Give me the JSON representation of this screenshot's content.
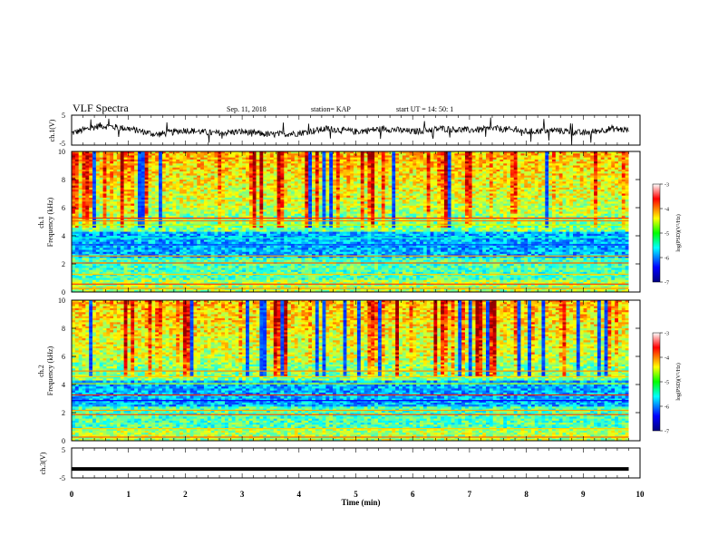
{
  "header": {
    "title": "VLF Spectra",
    "date": "Sep. 11, 2018",
    "station": "station= KAP",
    "start": "start  UT =   14: 50: 1"
  },
  "chart_data": [
    {
      "type": "line",
      "panel": "ch1-waveform",
      "ylabel": "ch.1(V)",
      "ylim": [
        -5,
        5
      ],
      "yticks": [
        "5",
        "-5"
      ],
      "xlim": [
        0,
        10
      ],
      "description_of_series": "noisy waveform roughly between -3 and 3 V",
      "x": [
        0,
        0.5,
        1,
        1.5,
        2,
        2.5,
        3,
        3.5,
        4,
        4.5,
        5,
        5.5,
        6,
        6.5,
        7,
        7.5,
        8,
        8.5,
        9,
        9.5,
        9.8
      ],
      "y": [
        -1,
        1.5,
        0.5,
        -1.5,
        0,
        -1,
        -0.5,
        -1.5,
        -1,
        0.5,
        -0.5,
        0.5,
        -0.5,
        0.5,
        0,
        0.5,
        -0.5,
        0,
        -1,
        0.5,
        0
      ]
    },
    {
      "type": "heatmap",
      "panel": "ch1-spectrogram",
      "ylabel": "ch.1",
      "ylabel2": "Frequency (kHz)",
      "ylim": [
        0,
        10
      ],
      "yticks": [
        "0",
        "2",
        "4",
        "6",
        "8",
        "10"
      ],
      "xlim": [
        0,
        10
      ],
      "colorbar": {
        "label": "log(PSD)(V²/Hz)",
        "range": [
          -7,
          -3
        ],
        "ticks": [
          "-3",
          "-4",
          "-5",
          "-6",
          "-7"
        ]
      }
    },
    {
      "type": "heatmap",
      "panel": "ch2-spectrogram",
      "ylabel": "ch.2",
      "ylabel2": "Frequency (kHz)",
      "ylim": [
        0,
        10
      ],
      "yticks": [
        "0",
        "2",
        "4",
        "6",
        "8",
        "10"
      ],
      "xlim": [
        0,
        10
      ],
      "colorbar": {
        "label": "log(PSD)(V²/Hz)",
        "range": [
          -7,
          -3
        ],
        "ticks": [
          "-3",
          "-4",
          "-5",
          "-6",
          "-7"
        ]
      }
    },
    {
      "type": "line",
      "panel": "ch3-waveform",
      "ylabel": "ch.3(V)",
      "ylim": [
        -5,
        5
      ],
      "yticks": [
        "5",
        "-5"
      ],
      "xlim": [
        0,
        10
      ],
      "x": [
        0,
        9.8
      ],
      "y": [
        -2,
        -2
      ]
    }
  ],
  "xaxis": {
    "label": "Time (min)",
    "ticks": [
      "0",
      "1",
      "2",
      "3",
      "4",
      "5",
      "6",
      "7",
      "8",
      "9",
      "10"
    ]
  },
  "colors": {
    "jet": [
      "#00007f",
      "#0000ff",
      "#00ffff",
      "#00ff00",
      "#ffff00",
      "#ff0000",
      "#7f0000"
    ]
  }
}
